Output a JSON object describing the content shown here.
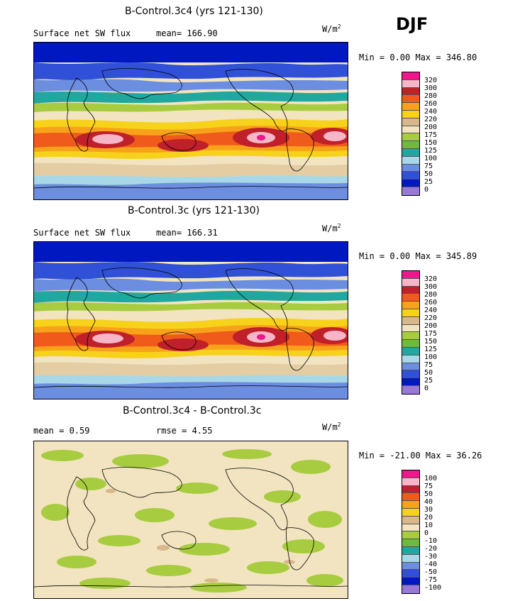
{
  "season": "DJF",
  "panels": [
    {
      "title": "B-Control.3c4 (yrs 121-130)",
      "left_text": "Surface net SW flux",
      "right_text": "mean= 166.90",
      "units_base": "W/m",
      "units_exp": "2",
      "minmax": "Min =   0.00 Max = 346.80",
      "legend_labels": [
        "320",
        "300",
        "280",
        "260",
        "240",
        "220",
        "200",
        "175",
        "150",
        "125",
        "100",
        "75",
        "50",
        "25",
        "0"
      ],
      "legend_colors": [
        "#f0168c",
        "#f7b6c8",
        "#c0202a",
        "#f05a1a",
        "#f7a21a",
        "#f7d21a",
        "#d8b88a",
        "#f2e4c0",
        "#a8cc40",
        "#6cbb3c",
        "#20a8a0",
        "#a8d8e8",
        "#6c8ee0",
        "#3050d8",
        "#0018c0",
        "#9878d8"
      ]
    },
    {
      "title": "B-Control.3c (yrs 121-130)",
      "left_text": "Surface net SW flux",
      "right_text": "mean= 166.31",
      "units_base": "W/m",
      "units_exp": "2",
      "minmax": "Min =   0.00 Max = 345.89",
      "legend_labels": [
        "320",
        "300",
        "280",
        "260",
        "240",
        "220",
        "200",
        "175",
        "150",
        "125",
        "100",
        "75",
        "50",
        "25",
        "0"
      ],
      "legend_colors": [
        "#f0168c",
        "#f7b6c8",
        "#c0202a",
        "#f05a1a",
        "#f7a21a",
        "#f7d21a",
        "#d8b88a",
        "#f2e4c0",
        "#a8cc40",
        "#6cbb3c",
        "#20a8a0",
        "#a8d8e8",
        "#6c8ee0",
        "#3050d8",
        "#0018c0",
        "#9878d8"
      ]
    },
    {
      "title": "B-Control.3c4 - B-Control.3c",
      "left_text": "mean =   0.59",
      "right_text": "rmse =   4.55",
      "units_base": "W/m",
      "units_exp": "2",
      "minmax": "Min = -21.00 Max =  36.26",
      "legend_labels": [
        "100",
        "75",
        "50",
        "40",
        "30",
        "20",
        "10",
        "0",
        "-10",
        "-20",
        "-30",
        "-40",
        "-50",
        "-75",
        "-100"
      ],
      "legend_colors": [
        "#f0168c",
        "#f7b6c8",
        "#c0202a",
        "#f05a1a",
        "#f7a21a",
        "#f7d21a",
        "#d8b88a",
        "#f2e4c0",
        "#a8cc40",
        "#6cbb3c",
        "#20a8a0",
        "#a8d8e8",
        "#6c8ee0",
        "#3050d8",
        "#0018c0",
        "#9878d8"
      ]
    }
  ]
}
